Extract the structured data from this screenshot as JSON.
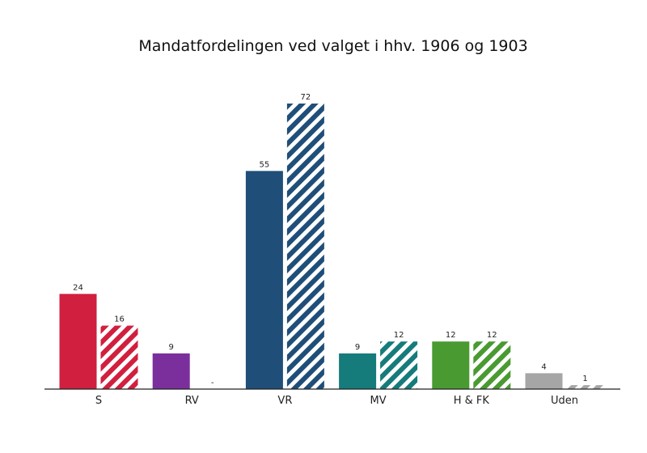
{
  "chart_data": {
    "type": "bar",
    "title": "Mandatfordelingen ved valget i hhv. 1906 og 1903",
    "xlabel": "",
    "ylabel": "",
    "categories": [
      "S",
      "RV",
      "VR",
      "MV",
      "H & FK",
      "Uden"
    ],
    "colors": [
      "#d11f3f",
      "#7b2f9c",
      "#1f4e79",
      "#167b7b",
      "#4a9a32",
      "#a6a6a6"
    ],
    "series": [
      {
        "name": "",
        "pattern": "solid",
        "values": [
          24,
          9,
          55,
          9,
          12,
          4
        ]
      },
      {
        "name": "",
        "pattern": "hatched",
        "values": [
          16,
          null,
          72,
          12,
          12,
          1
        ]
      }
    ],
    "missing_label": "-",
    "ylim": [
      0,
      72
    ],
    "grid": false,
    "legend": "none"
  }
}
